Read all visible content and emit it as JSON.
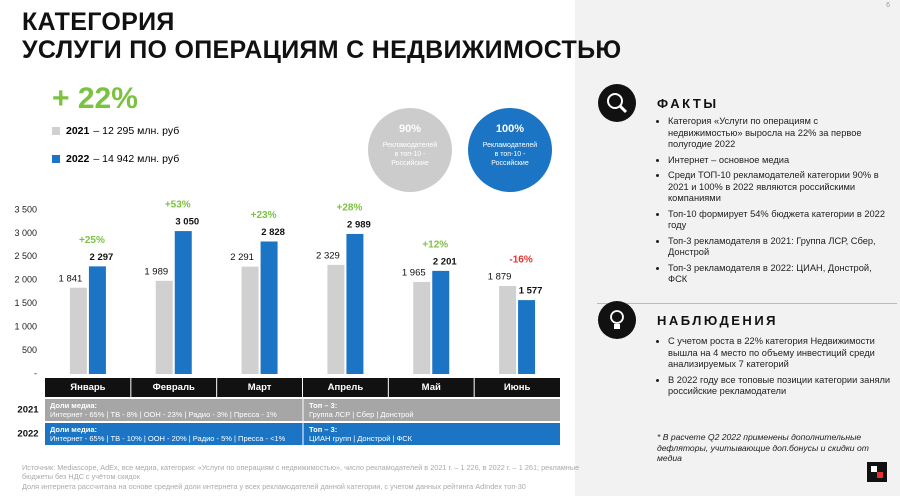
{
  "page_number": "6",
  "title_lines": [
    "КАТЕГОРИЯ",
    "УСЛУГИ ПО ОПЕРАЦИЯМ С НЕДВИЖИМОСТЬЮ"
  ],
  "growth": "+ 22%",
  "legend_totals": [
    "– 12 295 млн. руб",
    "– 14 942 млн. руб"
  ],
  "circles": [
    {
      "value": "90%",
      "text": "Рекламодателей в топ-10 - Российские",
      "color": "#cccccc"
    },
    {
      "value": "100%",
      "text": "Рекламодателей в топ-10 - Российские",
      "color": "#1b75c4"
    }
  ],
  "chart_data": {
    "type": "bar",
    "categories": [
      "Январь",
      "Февраль",
      "Март",
      "Апрель",
      "Май",
      "Июнь"
    ],
    "series": [
      {
        "name": "2021",
        "color": "#d0d0d0",
        "values": [
          1841,
          1989,
          2291,
          2329,
          1965,
          1879
        ],
        "value_labels": [
          "1 841",
          "1 989",
          "2 291",
          "2 329",
          "1 965",
          "1 879"
        ]
      },
      {
        "name": "2022",
        "color": "#1b75c4",
        "values": [
          2297,
          3050,
          2828,
          2989,
          2201,
          1577
        ],
        "value_labels": [
          "2 297",
          "3 050",
          "2 828",
          "2 989",
          "2 201",
          "1 577"
        ]
      }
    ],
    "annotations": [
      "+25%",
      "+53%",
      "+23%",
      "+28%",
      "+12%",
      "-16%"
    ],
    "annotation_colors": [
      "#7cc242",
      "#7cc242",
      "#7cc242",
      "#7cc242",
      "#7cc242",
      "#e8312f"
    ],
    "ylim": [
      0,
      3500
    ],
    "yticks": [
      {
        "value": 0,
        "label": "-"
      },
      500,
      {
        "value": 1000,
        "label": "1 000"
      },
      {
        "value": 1500,
        "label": "1 500"
      },
      {
        "value": 2000,
        "label": "2 000"
      },
      {
        "value": 2500,
        "label": "2 500"
      },
      {
        "value": 3000,
        "label": "3 000"
      },
      {
        "value": 3500,
        "label": "3 500"
      }
    ],
    "grid": false
  },
  "table": {
    "rows": [
      {
        "year": "2021",
        "media_title": "Доли медиа:",
        "media": "Интернет - 65% | ТВ - 8% | ООН - 23% | Радио - 3% | Пресса - 1%",
        "top_title": "Топ – 3:",
        "top": "Группа ЛСР | Сбер | Донстрой",
        "color": "#a6a6a6"
      },
      {
        "year": "2022",
        "media_title": "Доли медиа:",
        "media": "Интернет - 65% | ТВ - 10% | ООН - 20% | Радио - 5% | Пресса - <1%",
        "top_title": "Топ – 3:",
        "top": "ЦИАН групп | Донстрой | ФСК",
        "color": "#1b75c4"
      }
    ]
  },
  "footer": [
    "Источник: Mediascope, AdEx, все медиа, категория: «Услуги по операциям с недвижимостью», число рекламодателей в 2021 г. – 1 226, в 2022 г. – 1 261; рекламные бюджеты без НДС с учётом скидок",
    "Доля интернета рассчитана на основе средней доли интернета у всех рекламодателей данной категории, с учетом данных рейтинга AdIndex топ-30"
  ],
  "facts": {
    "title": "ФАКТЫ",
    "items": [
      "Категория «Услуги по операциям с недвижимостью» выросла на 22% за первое полугодие 2022",
      "Интернет – основное медиа",
      "Среди ТОП-10 рекламодателей категории 90% в 2021 и 100% в 2022 являются российскими компаниями",
      "Топ-10 формирует 54% бюджета категории в 2022 году",
      "Топ-3 рекламодателя в 2021: Группа ЛСР, Сбер, Донстрой",
      "Топ-3 рекламодателя в 2022: ЦИАН, Донстрой, ФСК"
    ]
  },
  "observations": {
    "title": "НАБЛЮДЕНИЯ",
    "items": [
      "С учетом роста в 22% категория Недвижимости вышла на 4 место по объему инвестиций среди анализируемых 7 категорий",
      "В 2022 году все топовые позиции категории заняли российские рекламодатели"
    ]
  },
  "note": "* В расчете Q2 2022 применены дополнительные дефляторы, учитывающие доп.бонусы и скидки от медиа"
}
